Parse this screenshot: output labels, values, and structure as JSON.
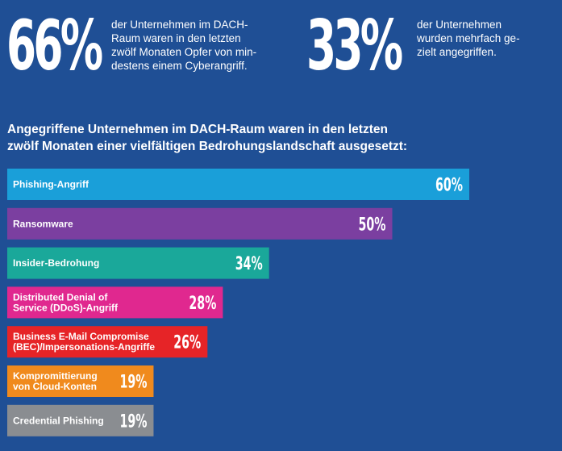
{
  "stats": [
    {
      "value": "66%",
      "text_lines": [
        "der Unternehmen im DACH-",
        "Raum waren in den letzten",
        "zwölf Monaten Opfer von min-",
        "destens einem Cyberangriff."
      ]
    },
    {
      "value": "33%",
      "text_lines": [
        "der Unternehmen",
        "wurden mehrfach ge-",
        "zielt angegriffen."
      ]
    }
  ],
  "headline_lines": [
    "Angegriffene Unternehmen im DACH-Raum waren in den letzten",
    "zwölf Monaten einer vielfältigen Bedrohungslandschaft ausgesetzt:"
  ],
  "chart_data": {
    "type": "bar",
    "orientation": "horizontal",
    "categories": [
      [
        "Phishing-Angriff"
      ],
      [
        "Ransomware"
      ],
      [
        "Insider-Bedrohung"
      ],
      [
        "Distributed Denial of",
        "Service (DDoS)-Angriff"
      ],
      [
        "Business E-Mail Compromise",
        "(BEC)/Impersonations-Angriffe"
      ],
      [
        "Kompromittierung",
        "von Cloud-Konten"
      ],
      [
        "Credential Phishing"
      ]
    ],
    "values": [
      60,
      50,
      34,
      28,
      26,
      19,
      19
    ],
    "value_labels": [
      "60%",
      "50%",
      "34%",
      "28%",
      "26%",
      "19%",
      "19%"
    ],
    "unit": "%",
    "xlim": [
      0,
      100
    ],
    "colors": [
      "#1a9fd9",
      "#7b3fa0",
      "#1aa89a",
      "#e0288f",
      "#e62427",
      "#f08a1d",
      "#8a8d91"
    ],
    "grid": false
  }
}
